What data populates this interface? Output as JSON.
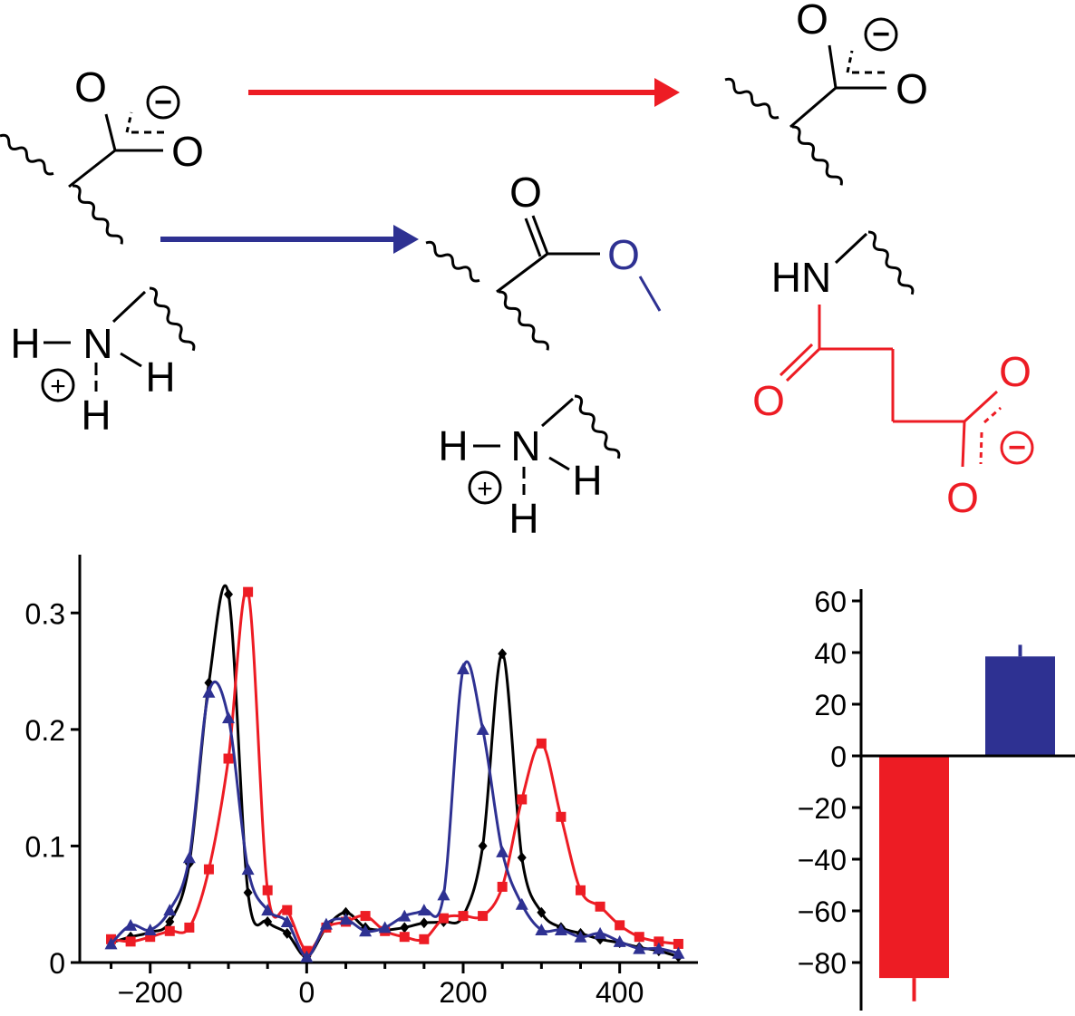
{
  "colors": {
    "black": "#000000",
    "red": "#ed1c24",
    "blue": "#2e3192"
  },
  "structures": {
    "start": {
      "o_top": "O",
      "o_right": "O",
      "charge": "−",
      "n": "N",
      "h_left": "H",
      "h_right": "H",
      "h_bottom": "H",
      "n_charge": "+"
    },
    "blue_product": {
      "o_top": "O",
      "o_ester": "O",
      "n": "N",
      "h_left": "H",
      "h_right": "H",
      "h_bottom": "H",
      "n_charge": "+"
    },
    "red_product": {
      "o_top": "O",
      "o_right": "O",
      "charge": "−",
      "hn": "HN",
      "o_amide": "O",
      "o_acid_top": "O",
      "o_acid_bottom": "O",
      "acid_charge": "−"
    }
  },
  "chart_data": [
    {
      "type": "line",
      "xlim": [
        -290,
        500
      ],
      "ylim": [
        0,
        0.35
      ],
      "x_ticks": [
        -200,
        0,
        200,
        400
      ],
      "x_tick_labels": [
        "−200",
        "0",
        "200",
        "400"
      ],
      "y_ticks": [
        0,
        0.1,
        0.2,
        0.3
      ],
      "y_tick_labels": [
        "0",
        "0.1",
        "0.2",
        "0.3"
      ],
      "series": [
        {
          "color": "#000000",
          "marker": "diamond",
          "points": [
            [
              -250,
              0.017
            ],
            [
              -225,
              0.022
            ],
            [
              -200,
              0.026
            ],
            [
              -175,
              0.035
            ],
            [
              -150,
              0.085
            ],
            [
              -125,
              0.24
            ],
            [
              -100,
              0.316
            ],
            [
              -75,
              0.06
            ],
            [
              -50,
              0.035
            ],
            [
              -25,
              0.025
            ],
            [
              0,
              0.005
            ],
            [
              25,
              0.03
            ],
            [
              50,
              0.043
            ],
            [
              75,
              0.03
            ],
            [
              100,
              0.028
            ],
            [
              125,
              0.03
            ],
            [
              150,
              0.034
            ],
            [
              175,
              0.035
            ],
            [
              200,
              0.04
            ],
            [
              225,
              0.1
            ],
            [
              250,
              0.265
            ],
            [
              275,
              0.09
            ],
            [
              300,
              0.043
            ],
            [
              325,
              0.03
            ],
            [
              350,
              0.025
            ],
            [
              375,
              0.02
            ],
            [
              400,
              0.017
            ],
            [
              425,
              0.013
            ],
            [
              450,
              0.01
            ],
            [
              475,
              0.005
            ]
          ]
        },
        {
          "color": "#ed1c24",
          "marker": "square",
          "points": [
            [
              -250,
              0.02
            ],
            [
              -225,
              0.018
            ],
            [
              -200,
              0.022
            ],
            [
              -175,
              0.027
            ],
            [
              -150,
              0.03
            ],
            [
              -125,
              0.08
            ],
            [
              -100,
              0.175
            ],
            [
              -75,
              0.318
            ],
            [
              -50,
              0.062
            ],
            [
              -25,
              0.045
            ],
            [
              0,
              0.01
            ],
            [
              25,
              0.03
            ],
            [
              50,
              0.035
            ],
            [
              75,
              0.04
            ],
            [
              100,
              0.027
            ],
            [
              125,
              0.022
            ],
            [
              150,
              0.02
            ],
            [
              175,
              0.038
            ],
            [
              200,
              0.04
            ],
            [
              225,
              0.04
            ],
            [
              250,
              0.065
            ],
            [
              275,
              0.14
            ],
            [
              300,
              0.188
            ],
            [
              325,
              0.125
            ],
            [
              350,
              0.062
            ],
            [
              375,
              0.048
            ],
            [
              400,
              0.032
            ],
            [
              425,
              0.022
            ],
            [
              450,
              0.018
            ],
            [
              475,
              0.016
            ]
          ]
        },
        {
          "color": "#2e3192",
          "marker": "triangle",
          "points": [
            [
              -250,
              0.016
            ],
            [
              -225,
              0.032
            ],
            [
              -200,
              0.028
            ],
            [
              -175,
              0.045
            ],
            [
              -150,
              0.09
            ],
            [
              -125,
              0.232
            ],
            [
              -100,
              0.21
            ],
            [
              -75,
              0.08
            ],
            [
              -50,
              0.045
            ],
            [
              -25,
              0.035
            ],
            [
              0,
              0.005
            ],
            [
              25,
              0.033
            ],
            [
              50,
              0.037
            ],
            [
              75,
              0.027
            ],
            [
              100,
              0.03
            ],
            [
              125,
              0.04
            ],
            [
              150,
              0.045
            ],
            [
              175,
              0.058
            ],
            [
              200,
              0.252
            ],
            [
              225,
              0.2
            ],
            [
              250,
              0.095
            ],
            [
              275,
              0.05
            ],
            [
              300,
              0.028
            ],
            [
              325,
              0.028
            ],
            [
              350,
              0.022
            ],
            [
              375,
              0.025
            ],
            [
              400,
              0.018
            ],
            [
              425,
              0.012
            ],
            [
              450,
              0.012
            ],
            [
              475,
              0.008
            ]
          ]
        }
      ]
    },
    {
      "type": "bar",
      "ylim": [
        -95,
        62
      ],
      "y_ticks": [
        60,
        40,
        20,
        0,
        -20,
        -40,
        -60,
        -80
      ],
      "y_tick_labels": [
        "60",
        "40",
        "20",
        "0",
        "−20",
        "−40",
        "−60",
        "−80"
      ],
      "bars": [
        {
          "value": -86,
          "error": 9,
          "color": "#ed1c24"
        },
        {
          "value": 38.5,
          "error": 4.5,
          "color": "#2e3192"
        }
      ]
    }
  ]
}
